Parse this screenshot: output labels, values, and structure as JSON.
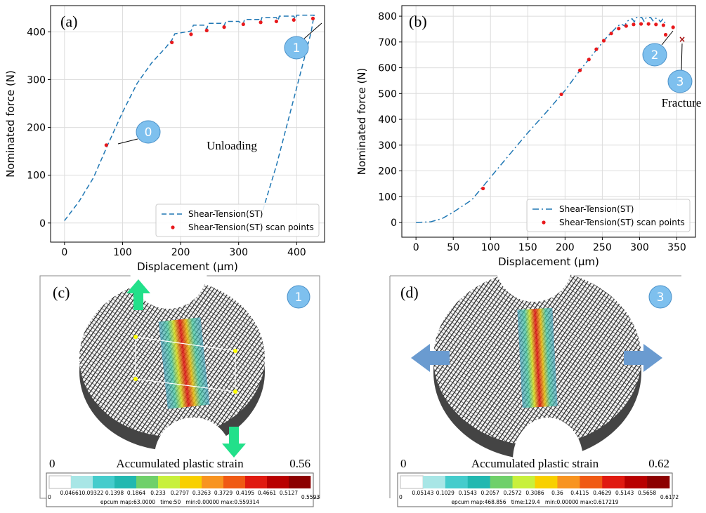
{
  "chart_data": [
    {
      "type": "line",
      "panel_label": "(a)",
      "xlabel": "Displacement (μm)",
      "ylabel": "Nominated force (N)",
      "xlim": [
        -24,
        448
      ],
      "ylim": [
        -40,
        455
      ],
      "xticks": [
        0,
        100,
        200,
        300,
        400
      ],
      "yticks": [
        0,
        100,
        200,
        300,
        400
      ],
      "grid": true,
      "legend": "lower right",
      "annotations": [
        "0",
        "1",
        "Unloading"
      ],
      "series": [
        {
          "name": "Shear-Tension(ST)",
          "color": "#1f77b4",
          "style": "dashed",
          "x": [
            0,
            25,
            50,
            75,
            100,
            125,
            150,
            175,
            185,
            190,
            210,
            218,
            222,
            240,
            245,
            248,
            270,
            275,
            278,
            300,
            308,
            310,
            335,
            338,
            340,
            365,
            368,
            370,
            395,
            398,
            400,
            425,
            430,
            425,
            410,
            395,
            380,
            365,
            350,
            340
          ],
          "values": [
            5,
            45,
            95,
            165,
            232,
            292,
            335,
            368,
            383,
            396,
            400,
            402,
            414,
            414,
            406,
            418,
            418,
            413,
            422,
            422,
            416,
            426,
            426,
            421,
            430,
            430,
            424,
            433,
            433,
            427,
            435,
            435,
            435,
            400,
            330,
            260,
            190,
            120,
            60,
            20
          ]
        },
        {
          "name": "Shear-Tension(ST) scan points",
          "color": "#e8191c",
          "style": "scatter",
          "x": [
            72,
            185,
            218,
            245,
            275,
            308,
            338,
            365,
            395,
            428
          ],
          "values": [
            163,
            378,
            395,
            403,
            410,
            416,
            420,
            422,
            425,
            428
          ]
        }
      ]
    },
    {
      "type": "line",
      "panel_label": "(b)",
      "xlabel": "Displacement (μm)",
      "ylabel": "Nominated force (N)",
      "xlim": [
        -19,
        375
      ],
      "ylim": [
        -57,
        841
      ],
      "xticks": [
        0,
        50,
        100,
        150,
        200,
        250,
        300,
        350
      ],
      "yticks": [
        0,
        100,
        200,
        300,
        400,
        500,
        600,
        700,
        800
      ],
      "grid": true,
      "legend": "lower right",
      "annotations": [
        "2",
        "3",
        "Fracture"
      ],
      "series": [
        {
          "name": "Shear-Tension(ST)",
          "color": "#1f77b4",
          "style": "dashdot",
          "x": [
            0,
            20,
            35,
            50,
            75,
            90,
            100,
            125,
            150,
            175,
            200,
            220,
            240,
            255,
            265,
            270,
            275,
            280,
            283,
            290,
            293,
            296,
            303,
            306,
            309,
            315,
            318,
            321,
            325,
            328,
            331,
            335
          ],
          "values": [
            0,
            3,
            15,
            40,
            88,
            140,
            175,
            262,
            348,
            428,
            512,
            590,
            662,
            715,
            745,
            760,
            770,
            762,
            780,
            790,
            778,
            795,
            795,
            780,
            795,
            795,
            782,
            792,
            790,
            778,
            788,
            770
          ]
        },
        {
          "name": "Shear-Tension(ST) scan points",
          "color": "#e8191c",
          "style": "scatter",
          "x": [
            90,
            195,
            220,
            232,
            242,
            252,
            262,
            272,
            282,
            292,
            302,
            312,
            322,
            332,
            335,
            345
          ],
          "values": [
            132,
            497,
            590,
            632,
            672,
            705,
            733,
            752,
            762,
            768,
            770,
            770,
            768,
            765,
            728,
            757
          ]
        }
      ]
    }
  ],
  "panels": [
    {
      "label": "(c)",
      "state": "1",
      "scale_min": "0",
      "scale_title": "Accumulated plastic strain",
      "scale_max": "0.56",
      "colorbar": {
        "ticks": [
          "0",
          "0.04661",
          "0.09322",
          "0.1398",
          "0.1864",
          "0.233",
          "0.2797",
          "0.3263",
          "0.3729",
          "0.4195",
          "0.4661",
          "0.5127",
          "0.5593"
        ],
        "colors": [
          "#ffffff",
          "#a8e6e6",
          "#45cccc",
          "#22b8b0",
          "#6fd06a",
          "#c8f03c",
          "#f8d000",
          "#f89420",
          "#f05a14",
          "#e01a10",
          "#b80000",
          "#8c0000"
        ]
      },
      "footer": "epcum map:63.0000   time:50   min:0.00000 max:0.559314"
    },
    {
      "label": "(d)",
      "state": "3",
      "scale_min": "0",
      "scale_title": "Accumulated plastic strain",
      "scale_max": "0.62",
      "colorbar": {
        "ticks": [
          "0",
          "0.05143",
          "0.1029",
          "0.1543",
          "0.2057",
          "0.2572",
          "0.3086",
          "0.36",
          "0.4115",
          "0.4629",
          "0.5143",
          "0.5658",
          "0.6172"
        ],
        "colors": [
          "#ffffff",
          "#a8e6e6",
          "#45cccc",
          "#22b8b0",
          "#6fd06a",
          "#c8f03c",
          "#f8d000",
          "#f89420",
          "#f05a14",
          "#e01a10",
          "#b80000",
          "#8c0000"
        ]
      },
      "footer": "epcum map:468.856   time:129.4   min:0.00000 max:0.617219"
    }
  ]
}
